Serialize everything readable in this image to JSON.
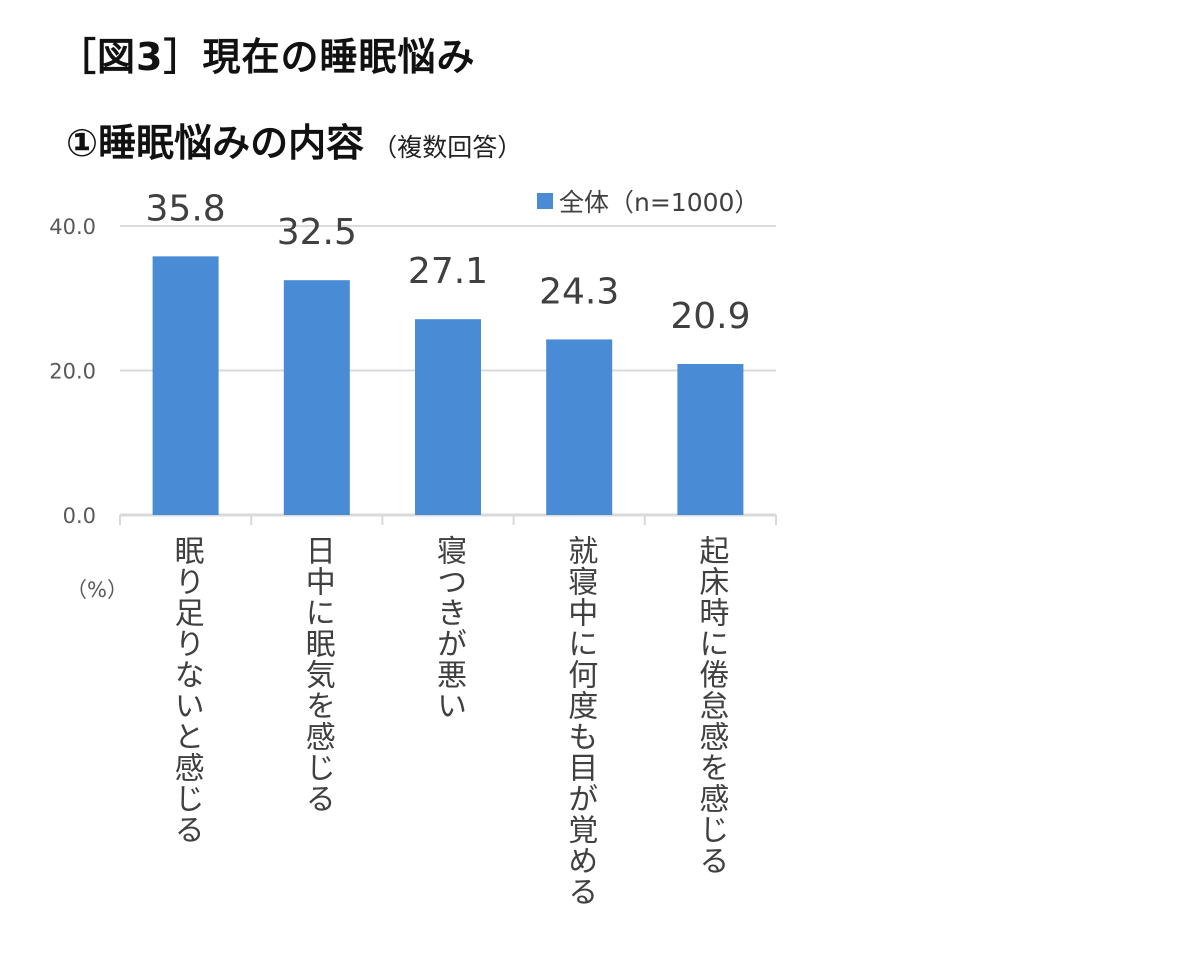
{
  "title": "［図3］現在の睡眠悩み",
  "subtitle": {
    "main": "①睡眠悩みの内容",
    "note": "（複数回答）"
  },
  "chart_data": {
    "type": "bar",
    "title": "①睡眠悩みの内容",
    "ylabel": "（%）",
    "ylim": [
      0,
      40
    ],
    "yticks": [
      "0.0",
      "20.0",
      "40.0"
    ],
    "grid": true,
    "legend_position": "top-right",
    "categories": [
      "眠り足りないと感じる",
      "日中に眠気を感じる",
      "寝つきが悪い",
      "就寝中に何度も目が覚める",
      "起床時に倦怠感を感じる"
    ],
    "series": [
      {
        "name": "全体（n=1000）",
        "values": [
          35.8,
          32.5,
          27.1,
          24.3,
          20.9
        ],
        "labels": [
          "35.8",
          "32.5",
          "27.1",
          "24.3",
          "20.9"
        ],
        "color": "#4a8bd6"
      }
    ]
  }
}
